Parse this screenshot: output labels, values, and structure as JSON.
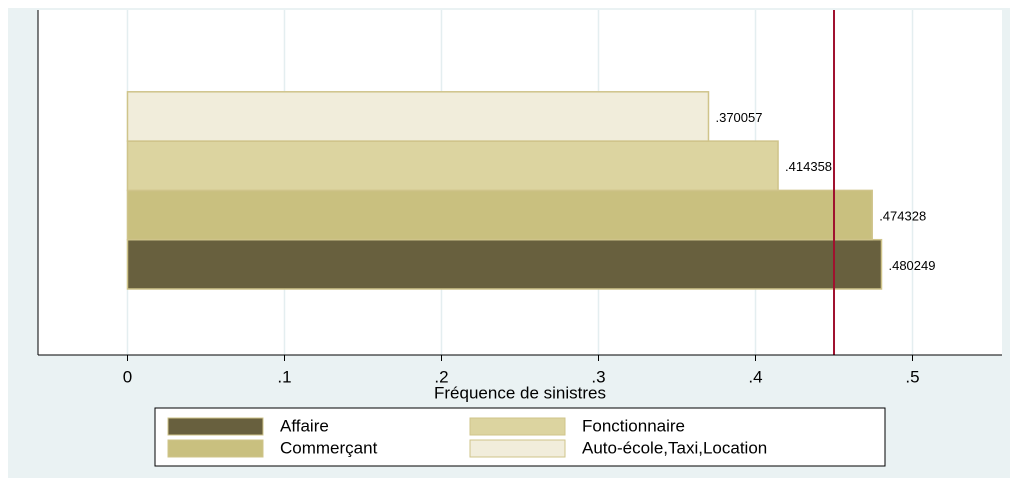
{
  "chart_data": {
    "type": "hbar",
    "x_label": "Fréquence de sinistres",
    "series": [
      {
        "name": "Affaire",
        "color": "#68603e",
        "values": [
          0.480249
        ],
        "value_labels": [
          ".480249"
        ]
      },
      {
        "name": "Commerçant",
        "color": "#c9c07f",
        "values": [
          0.474328
        ],
        "value_labels": [
          ".474328"
        ]
      },
      {
        "name": "Fonctionnaire",
        "color": "#dcd4a0",
        "values": [
          0.414358
        ],
        "value_labels": [
          ".414358"
        ]
      },
      {
        "name": "Auto-école,Taxi,Location",
        "color": "#f1eddb",
        "values": [
          0.370057
        ],
        "value_labels": [
          ".370057"
        ]
      }
    ],
    "reference_line": {
      "value": 0.45,
      "color": "#a0112f"
    },
    "xlim": [
      -0.057,
      0.557
    ],
    "xticks": [
      0,
      {
        "value": 0.1,
        "label": ".1"
      },
      {
        "value": 0.2,
        "label": ".2"
      },
      {
        "value": 0.3,
        "label": ".3"
      },
      {
        "value": 0.4,
        "label": ".4"
      },
      {
        "value": 0.5,
        "label": ".5"
      }
    ],
    "grid": true,
    "legend": "bottom"
  }
}
